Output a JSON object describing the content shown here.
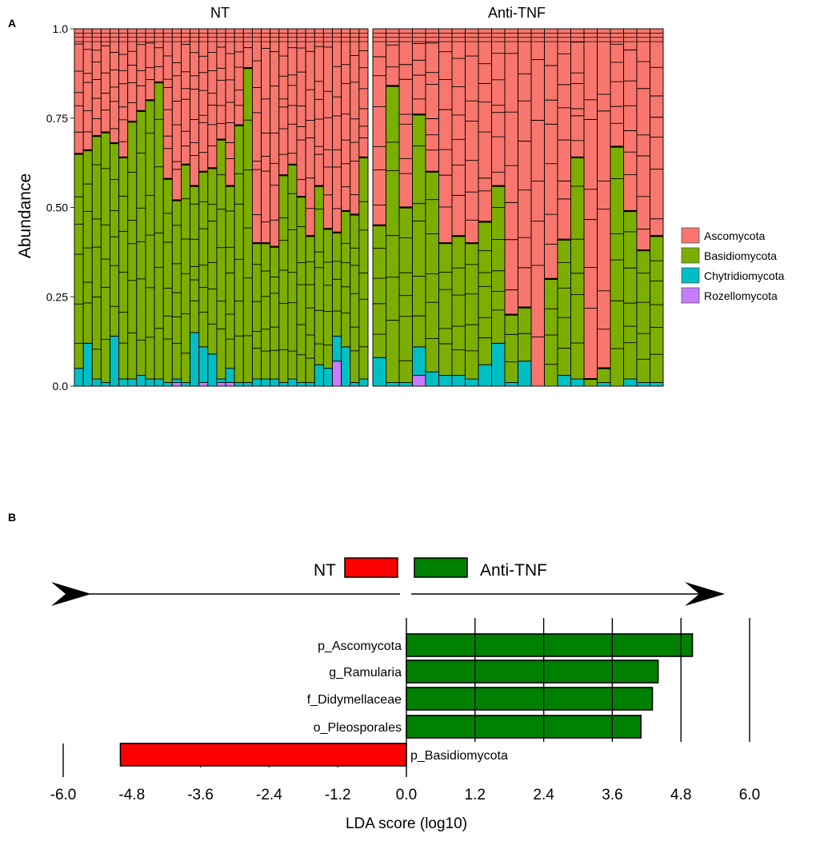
{
  "chart_data": [
    {
      "type": "bar",
      "subtype": "stacked-100-percent",
      "panel_label": "A",
      "ylabel": "Abundance",
      "ylim": [
        0,
        1
      ],
      "yticks": [
        "0.0",
        "0.25",
        "0.50",
        "0.75",
        "1.0"
      ],
      "ytick_values": [
        0,
        0.25,
        0.5,
        0.75,
        1.0
      ],
      "legend": {
        "position": "right",
        "entries": [
          {
            "name": "Ascomycota",
            "color": "#F8766D"
          },
          {
            "name": "Basidiomycota",
            "color": "#7CAE00"
          },
          {
            "name": "Chytridiomycota",
            "color": "#00BFC4"
          },
          {
            "name": "Rozellomycota",
            "color": "#C77CFF"
          }
        ]
      },
      "groups": [
        {
          "name": "NT",
          "samples": [
            {
              "chy": 0.05,
              "roz": 0,
              "bas_top": 0.65
            },
            {
              "chy": 0.12,
              "roz": 0,
              "bas_top": 0.66
            },
            {
              "chy": 0.02,
              "roz": 0,
              "bas_top": 0.7
            },
            {
              "chy": 0.01,
              "roz": 0,
              "bas_top": 0.71
            },
            {
              "chy": 0.14,
              "roz": 0,
              "bas_top": 0.68
            },
            {
              "chy": 0.02,
              "roz": 0,
              "bas_top": 0.64
            },
            {
              "chy": 0.02,
              "roz": 0,
              "bas_top": 0.74
            },
            {
              "chy": 0.03,
              "roz": 0,
              "bas_top": 0.77
            },
            {
              "chy": 0.02,
              "roz": 0,
              "bas_top": 0.8
            },
            {
              "chy": 0.02,
              "roz": 0,
              "bas_top": 0.85
            },
            {
              "chy": 0.01,
              "roz": 0,
              "bas_top": 0.58
            },
            {
              "chy": 0.01,
              "roz": 0.01,
              "bas_top": 0.52
            },
            {
              "chy": 0.01,
              "roz": 0,
              "bas_top": 0.62
            },
            {
              "chy": 0.15,
              "roz": 0,
              "bas_top": 0.56
            },
            {
              "chy": 0.1,
              "roz": 0.01,
              "bas_top": 0.6
            },
            {
              "chy": 0.09,
              "roz": 0,
              "bas_top": 0.61
            },
            {
              "chy": 0.01,
              "roz": 0.01,
              "bas_top": 0.69
            },
            {
              "chy": 0.04,
              "roz": 0.01,
              "bas_top": 0.56
            },
            {
              "chy": 0.01,
              "roz": 0,
              "bas_top": 0.73
            },
            {
              "chy": 0.01,
              "roz": 0,
              "bas_top": 0.89
            },
            {
              "chy": 0.02,
              "roz": 0,
              "bas_top": 0.4
            },
            {
              "chy": 0.02,
              "roz": 0,
              "bas_top": 0.4
            },
            {
              "chy": 0.02,
              "roz": 0,
              "bas_top": 0.39
            },
            {
              "chy": 0.01,
              "roz": 0,
              "bas_top": 0.59
            },
            {
              "chy": 0.02,
              "roz": 0,
              "bas_top": 0.62
            },
            {
              "chy": 0.01,
              "roz": 0,
              "bas_top": 0.53
            },
            {
              "chy": 0.01,
              "roz": 0,
              "bas_top": 0.42
            },
            {
              "chy": 0.06,
              "roz": 0,
              "bas_top": 0.56
            },
            {
              "chy": 0.05,
              "roz": 0,
              "bas_top": 0.44
            },
            {
              "chy": 0.07,
              "roz": 0.07,
              "bas_top": 0.43
            },
            {
              "chy": 0.11,
              "roz": 0,
              "bas_top": 0.49
            },
            {
              "chy": 0.01,
              "roz": 0,
              "bas_top": 0.48
            },
            {
              "chy": 0.02,
              "roz": 0,
              "bas_top": 0.64
            }
          ]
        },
        {
          "name": "Anti-TNF",
          "samples": [
            {
              "chy": 0.08,
              "roz": 0,
              "bas_top": 0.45
            },
            {
              "chy": 0.01,
              "roz": 0,
              "bas_top": 0.84
            },
            {
              "chy": 0.01,
              "roz": 0,
              "bas_top": 0.5
            },
            {
              "chy": 0.08,
              "roz": 0.03,
              "bas_top": 0.76
            },
            {
              "chy": 0.04,
              "roz": 0,
              "bas_top": 0.6
            },
            {
              "chy": 0.03,
              "roz": 0,
              "bas_top": 0.4
            },
            {
              "chy": 0.03,
              "roz": 0,
              "bas_top": 0.42
            },
            {
              "chy": 0.02,
              "roz": 0,
              "bas_top": 0.4
            },
            {
              "chy": 0.06,
              "roz": 0,
              "bas_top": 0.46
            },
            {
              "chy": 0.12,
              "roz": 0,
              "bas_top": 0.56
            },
            {
              "chy": 0.01,
              "roz": 0,
              "bas_top": 0.2
            },
            {
              "chy": 0.07,
              "roz": 0,
              "bas_top": 0.22
            },
            {
              "chy": 0,
              "roz": 0,
              "bas_top": 0
            },
            {
              "chy": 0,
              "roz": 0,
              "bas_top": 0.3
            },
            {
              "chy": 0.03,
              "roz": 0,
              "bas_top": 0.41
            },
            {
              "chy": 0.02,
              "roz": 0,
              "bas_top": 0.64
            },
            {
              "chy": 0,
              "roz": 0,
              "bas_top": 0.02
            },
            {
              "chy": 0.01,
              "roz": 0,
              "bas_top": 0.05
            },
            {
              "chy": 0,
              "roz": 0,
              "bas_top": 0.67
            },
            {
              "chy": 0.02,
              "roz": 0,
              "bas_top": 0.49
            },
            {
              "chy": 0.01,
              "roz": 0,
              "bas_top": 0.38
            },
            {
              "chy": 0.01,
              "roz": 0,
              "bas_top": 0.42
            }
          ]
        }
      ]
    },
    {
      "type": "bar",
      "subtype": "horizontal-diverging",
      "panel_label": "B",
      "xlabel": "LDA score (log10)",
      "xlim": [
        -6.0,
        6.0
      ],
      "xticks": [
        -6.0,
        -4.8,
        -3.6,
        -2.4,
        -1.2,
        0.0,
        1.2,
        2.4,
        3.6,
        4.8,
        6.0
      ],
      "xtick_labels": [
        "-6.0",
        "-4.8",
        "-3.6",
        "-2.4",
        "-1.2",
        "0.0",
        "1.2",
        "2.4",
        "3.6",
        "4.8",
        "6.0"
      ],
      "legend": {
        "position": "top-center",
        "entries": [
          {
            "name": "NT",
            "color": "#FF0000"
          },
          {
            "name": "Anti-TNF",
            "color": "#008000"
          }
        ]
      },
      "categories": [
        "p_Ascomycota",
        "g_Ramularia",
        "f_Didymellaceae",
        "o_Pleosporales",
        "p_Basidiomycota"
      ],
      "values": [
        5.0,
        4.4,
        4.3,
        4.1,
        -5.0
      ],
      "colors": [
        "#008000",
        "#008000",
        "#008000",
        "#008000",
        "#FF0000"
      ]
    }
  ]
}
